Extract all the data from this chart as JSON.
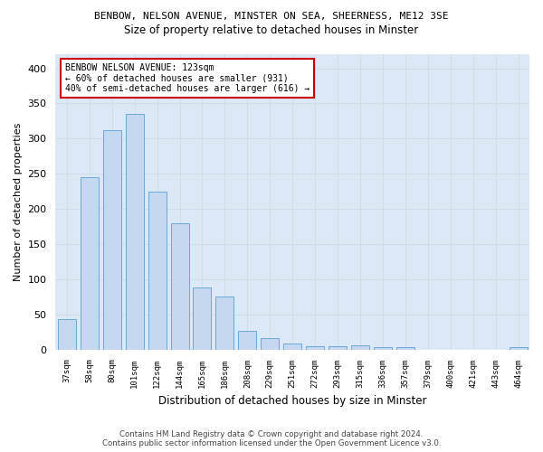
{
  "title_line1": "BENBOW, NELSON AVENUE, MINSTER ON SEA, SHEERNESS, ME12 3SE",
  "title_line2": "Size of property relative to detached houses in Minster",
  "xlabel": "Distribution of detached houses by size in Minster",
  "ylabel": "Number of detached properties",
  "categories": [
    "37sqm",
    "58sqm",
    "80sqm",
    "101sqm",
    "122sqm",
    "144sqm",
    "165sqm",
    "186sqm",
    "208sqm",
    "229sqm",
    "251sqm",
    "272sqm",
    "293sqm",
    "315sqm",
    "336sqm",
    "357sqm",
    "379sqm",
    "400sqm",
    "421sqm",
    "443sqm",
    "464sqm"
  ],
  "values": [
    43,
    245,
    312,
    335,
    225,
    180,
    88,
    75,
    26,
    16,
    9,
    5,
    5,
    6,
    4,
    3,
    0,
    0,
    0,
    0,
    4
  ],
  "bar_color": "#c5d8f0",
  "bar_edge_color": "#5a9fd4",
  "annotation_text_line1": "BENBOW NELSON AVENUE: 123sqm",
  "annotation_text_line2": "← 60% of detached houses are smaller (931)",
  "annotation_text_line3": "40% of semi-detached houses are larger (616) →",
  "annotation_box_color": "#ffffff",
  "annotation_box_edge_color": "#cc0000",
  "grid_color": "#d0dce8",
  "background_color": "#dce8f5",
  "ylim": [
    0,
    420
  ],
  "yticks": [
    0,
    50,
    100,
    150,
    200,
    250,
    300,
    350,
    400
  ],
  "footer_line1": "Contains HM Land Registry data © Crown copyright and database right 2024.",
  "footer_line2": "Contains public sector information licensed under the Open Government Licence v3.0."
}
